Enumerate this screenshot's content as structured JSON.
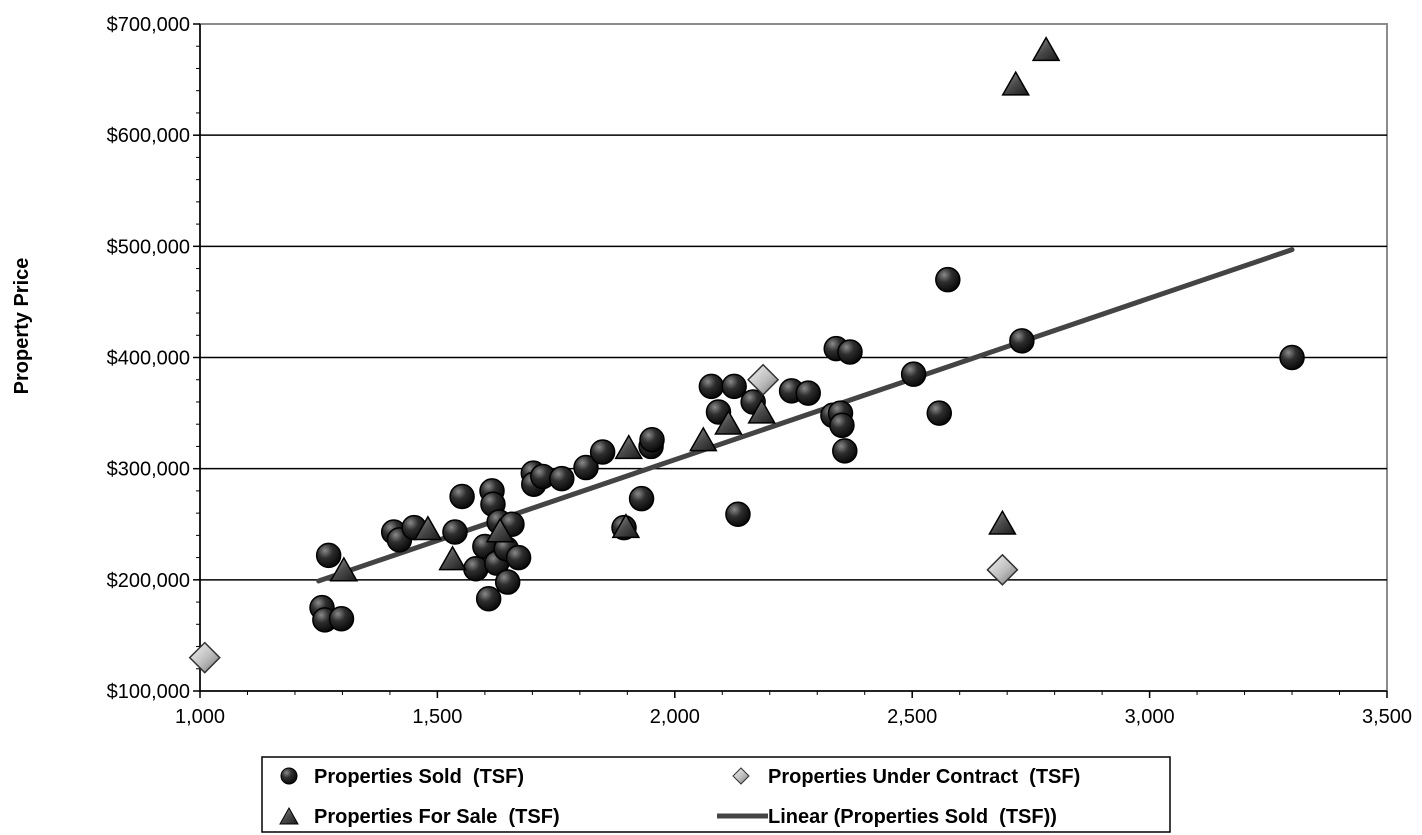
{
  "chart_data": {
    "type": "scatter",
    "title": "",
    "xlabel": "",
    "ylabel": "Property Price",
    "xlim": [
      1000,
      3500
    ],
    "ylim": [
      100000,
      700000
    ],
    "x_ticks": [
      "1,000",
      "1,500",
      "2,000",
      "2,500",
      "3,000",
      "3,500"
    ],
    "y_ticks": [
      "$100,000",
      "$200,000",
      "$300,000",
      "$400,000",
      "$500,000",
      "$600,000",
      "$700,000"
    ],
    "grid": "horizontal major gridlines",
    "legend_position": "bottom",
    "series": [
      {
        "name": "Properties Sold  (TSF)",
        "marker": "circle",
        "color": "#222222",
        "points": [
          [
            1257,
            175000
          ],
          [
            1263,
            164000
          ],
          [
            1271,
            222000
          ],
          [
            1298,
            165000
          ],
          [
            1408,
            243000
          ],
          [
            1420,
            236000
          ],
          [
            1451,
            247000
          ],
          [
            1537,
            243000
          ],
          [
            1552,
            275000
          ],
          [
            1581,
            210000
          ],
          [
            1600,
            230000
          ],
          [
            1608,
            183000
          ],
          [
            1615,
            280000
          ],
          [
            1617,
            268000
          ],
          [
            1625,
            215000
          ],
          [
            1630,
            252000
          ],
          [
            1645,
            228000
          ],
          [
            1648,
            198000
          ],
          [
            1657,
            250000
          ],
          [
            1671,
            220000
          ],
          [
            1702,
            296000
          ],
          [
            1703,
            286000
          ],
          [
            1722,
            293000
          ],
          [
            1762,
            291000
          ],
          [
            1813,
            301000
          ],
          [
            1848,
            315000
          ],
          [
            1893,
            247000
          ],
          [
            1930,
            273000
          ],
          [
            1950,
            320000
          ],
          [
            1952,
            326000
          ],
          [
            2077,
            374000
          ],
          [
            2092,
            351000
          ],
          [
            2125,
            374000
          ],
          [
            2133,
            259000
          ],
          [
            2165,
            360000
          ],
          [
            2246,
            370000
          ],
          [
            2281,
            368000
          ],
          [
            2333,
            348000
          ],
          [
            2340,
            408000
          ],
          [
            2349,
            350000
          ],
          [
            2352,
            339000
          ],
          [
            2358,
            316000
          ],
          [
            2369,
            405000
          ],
          [
            2503,
            385000
          ],
          [
            2557,
            350000
          ],
          [
            2575,
            470000
          ],
          [
            2731,
            415000
          ],
          [
            3300,
            400000
          ]
        ]
      },
      {
        "name": "Properties Under Contract  (TSF)",
        "marker": "diamond",
        "color": "#d0d0d0",
        "points": [
          [
            1010,
            130000
          ],
          [
            2186,
            380000
          ],
          [
            2690,
            209000
          ]
        ]
      },
      {
        "name": "Properties For Sale  (TSF)",
        "marker": "triangle",
        "color": "#555555",
        "points": [
          [
            1303,
            208000
          ],
          [
            1480,
            245000
          ],
          [
            1532,
            218000
          ],
          [
            1632,
            243000
          ],
          [
            1897,
            247000
          ],
          [
            1903,
            318000
          ],
          [
            2060,
            325000
          ],
          [
            2113,
            340000
          ],
          [
            2183,
            350000
          ],
          [
            2690,
            250000
          ],
          [
            2718,
            645000
          ],
          [
            2782,
            676000
          ]
        ]
      }
    ],
    "trendline": {
      "name": "Linear (Properties Sold  (TSF))",
      "type": "linear",
      "color": "#444444",
      "x": [
        1250,
        3300
      ],
      "y": [
        199000,
        497000
      ]
    }
  }
}
